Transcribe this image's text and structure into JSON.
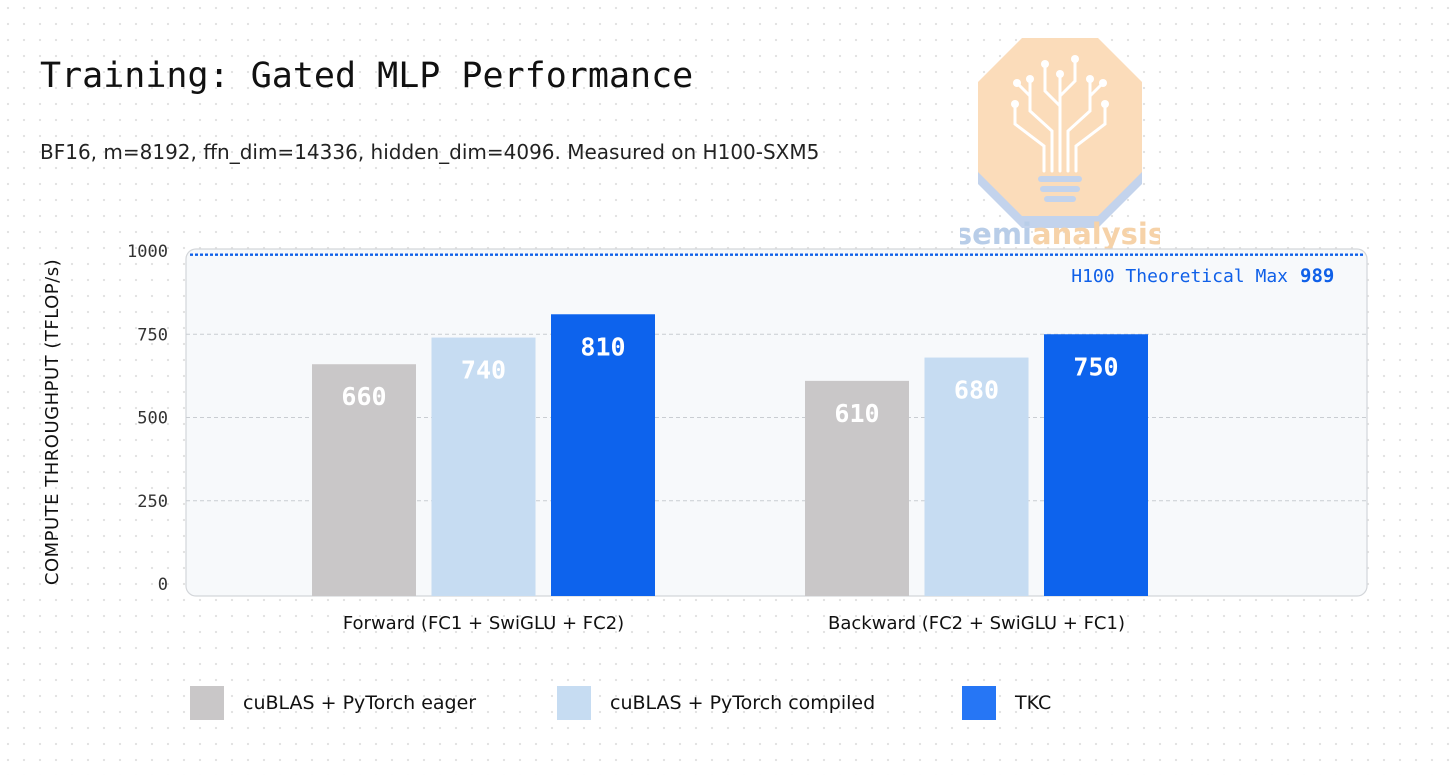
{
  "header": {
    "title": "Training: Gated MLP Performance",
    "subtitle": "BF16, m=8192, ffn_dim=14336, hidden_dim=4096. Measured on H100-SXM5"
  },
  "logo": {
    "icon": "semianalysis-logo-icon",
    "wordmark_a": "semi",
    "wordmark_b": "analysis"
  },
  "colors": {
    "eager": "#c9c7c8",
    "compiled": "#c6dcf2",
    "tkc": "#0d63ed",
    "reference": "#1060e8",
    "plot_bg": "#f7f9fb"
  },
  "chart_data": {
    "type": "bar",
    "title": "Training: Gated MLP Performance",
    "ylabel": "COMPUTE THROUGHPUT (TFLOP/s)",
    "ylim": [
      0,
      1000
    ],
    "yticks": [
      0,
      250,
      500,
      750,
      1000
    ],
    "grid": true,
    "legend_position": "bottom",
    "categories": [
      "Forward (FC1 + SwiGLU + FC2)",
      "Backward (FC2 + SwiGLU + FC1)"
    ],
    "series": [
      {
        "name": "cuBLAS + PyTorch eager",
        "values": [
          660,
          610
        ]
      },
      {
        "name": "cuBLAS + PyTorch compiled",
        "values": [
          740,
          680
        ]
      },
      {
        "name": "TKC",
        "values": [
          810,
          750
        ]
      }
    ],
    "reference_line": {
      "label": "H100 Theoretical Max",
      "value": 989
    }
  }
}
